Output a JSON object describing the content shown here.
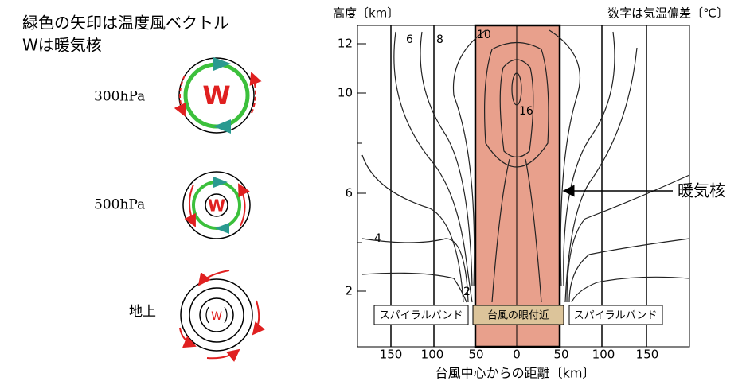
{
  "left": {
    "title_lines": [
      "緑色の矢印は温度風ベクトル",
      "Wは暖気核"
    ],
    "levels": [
      {
        "label": "300hPa",
        "core": "W"
      },
      {
        "label": "500hPa",
        "core": "W"
      },
      {
        "label": "地上",
        "core": "W"
      }
    ]
  },
  "right": {
    "y_axis_title": "高度〔km〕",
    "note": "数字は気温偏差〔℃〕",
    "y_tick_labels": [
      12,
      10,
      6,
      2
    ],
    "x_tick_labels": [
      150,
      100,
      50,
      0,
      50,
      100,
      150
    ],
    "x_axis_title": "台風中心からの距離〔km〕",
    "contour_labels": [
      6,
      8,
      10,
      16,
      4,
      2
    ],
    "pointer_label": "暖気核",
    "regions": [
      "スパイラルバンド",
      "台風の眼付近",
      "スパイラルバンド"
    ]
  }
}
